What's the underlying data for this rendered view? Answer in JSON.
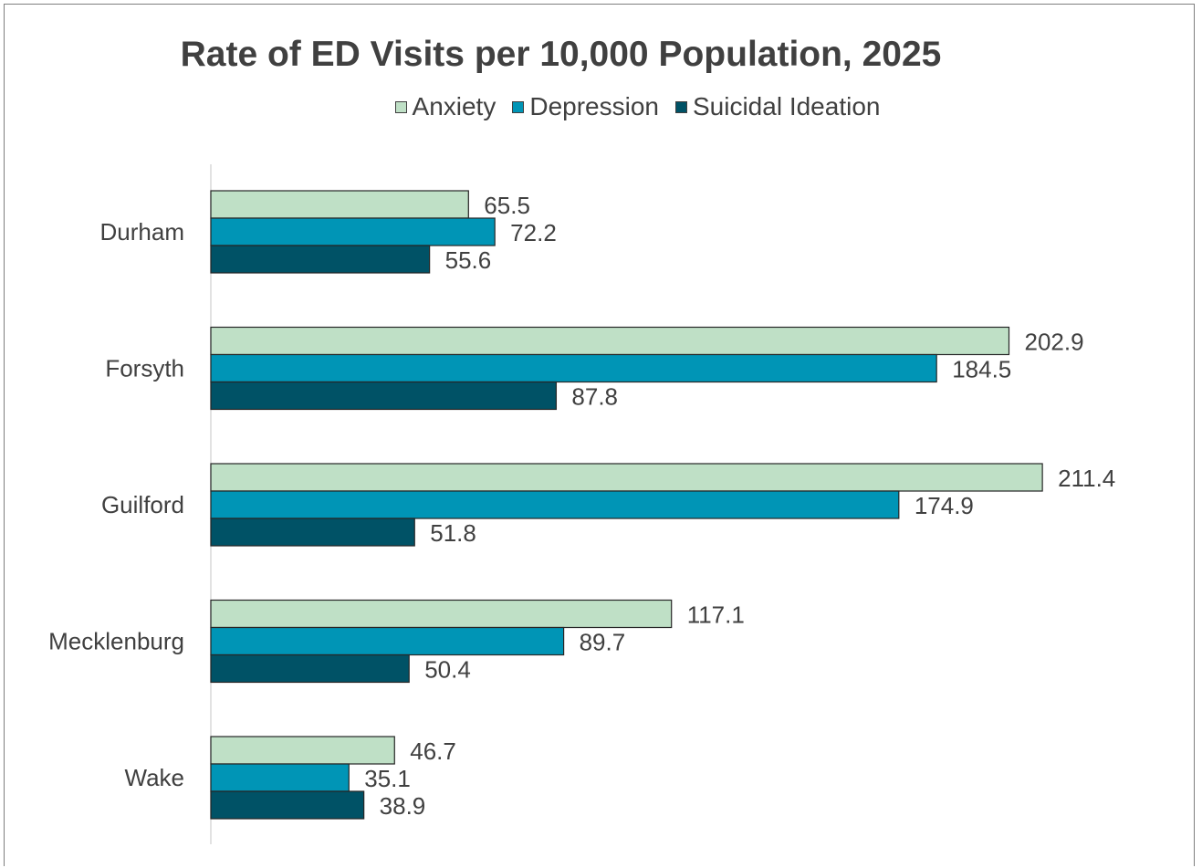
{
  "chart_data": {
    "type": "bar",
    "orientation": "horizontal",
    "title": "Rate of ED Visits per 10,000 Population, 2025",
    "categories": [
      "Durham",
      "Forsyth",
      "Guilford",
      "Mecklenburg",
      "Wake"
    ],
    "series": [
      {
        "name": "Anxiety",
        "color": "#bfe0c6",
        "values": [
          65.5,
          202.9,
          211.4,
          117.1,
          46.7
        ],
        "labels": [
          "65.5",
          "202.9",
          "211.4",
          "117.1",
          "46.7"
        ]
      },
      {
        "name": "Depression",
        "color": "#0095b6",
        "values": [
          72.2,
          184.5,
          174.9,
          89.7,
          35.1
        ],
        "labels": [
          "72.2",
          "184.5",
          "174.9",
          "89.7",
          "35.1"
        ]
      },
      {
        "name": "Suicidal Ideation",
        "color": "#005266",
        "values": [
          55.6,
          87.8,
          51.8,
          50.4,
          38.9
        ],
        "labels": [
          "55.6",
          "87.8",
          "51.8",
          "50.4",
          "38.9"
        ]
      }
    ],
    "xlim": [
      0,
      250
    ],
    "grid": false,
    "legend_position": "top",
    "xlabel": "",
    "ylabel": ""
  }
}
